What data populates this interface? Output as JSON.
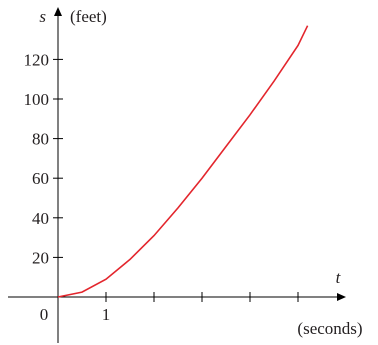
{
  "chart_data": {
    "type": "line",
    "curve_color": "#e3262d",
    "x_axis": {
      "symbol": "t",
      "unit_label": "(seconds)",
      "labeled_ticks": [
        1
      ],
      "ticks": [
        1,
        2,
        3,
        4,
        5
      ],
      "range": [
        0,
        5.8
      ]
    },
    "y_axis": {
      "symbol": "s",
      "unit_label": "(feet)",
      "ticks": [
        20,
        40,
        60,
        80,
        100,
        120
      ],
      "range": [
        0,
        145
      ]
    },
    "origin_label": "0",
    "series": [
      {
        "x": [
          0,
          0.5,
          1,
          1.5,
          2,
          2.5,
          3,
          3.5,
          4,
          4.5,
          5,
          5.2
        ],
        "y": [
          0,
          2.5,
          9,
          19,
          31,
          45,
          60,
          76,
          92,
          109,
          127,
          137
        ]
      }
    ]
  }
}
